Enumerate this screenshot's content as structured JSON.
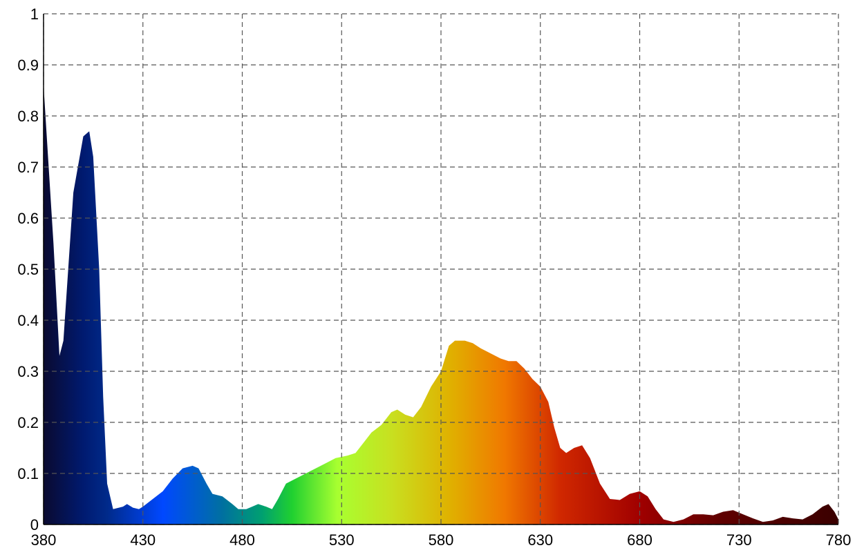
{
  "chart_data": {
    "type": "area",
    "x": [
      380,
      385,
      388,
      390,
      395,
      400,
      403,
      405,
      408,
      410,
      412,
      415,
      420,
      422,
      425,
      428,
      430,
      435,
      440,
      445,
      450,
      455,
      458,
      462,
      465,
      470,
      475,
      478,
      482,
      485,
      488,
      492,
      495,
      498,
      502,
      507,
      512,
      517,
      522,
      527,
      533,
      537,
      541,
      545,
      550,
      555,
      558,
      562,
      566,
      570,
      575,
      580,
      584,
      587,
      592,
      596,
      600,
      605,
      610,
      614,
      618,
      622,
      626,
      630,
      634,
      637,
      640,
      643,
      647,
      651,
      655,
      660,
      665,
      670,
      675,
      680,
      684,
      688,
      692,
      697,
      702,
      707,
      712,
      717,
      722,
      727,
      732,
      737,
      742,
      747,
      752,
      757,
      762,
      767,
      772,
      775,
      778,
      780
    ],
    "values": [
      0.86,
      0.55,
      0.33,
      0.36,
      0.65,
      0.76,
      0.77,
      0.72,
      0.5,
      0.25,
      0.08,
      0.03,
      0.035,
      0.04,
      0.033,
      0.03,
      0.035,
      0.05,
      0.065,
      0.09,
      0.11,
      0.115,
      0.11,
      0.08,
      0.06,
      0.055,
      0.04,
      0.03,
      0.03,
      0.035,
      0.04,
      0.035,
      0.03,
      0.05,
      0.08,
      0.09,
      0.1,
      0.11,
      0.12,
      0.13,
      0.135,
      0.14,
      0.16,
      0.18,
      0.195,
      0.22,
      0.225,
      0.215,
      0.21,
      0.23,
      0.27,
      0.3,
      0.35,
      0.36,
      0.36,
      0.355,
      0.345,
      0.335,
      0.325,
      0.32,
      0.32,
      0.305,
      0.285,
      0.27,
      0.24,
      0.19,
      0.15,
      0.14,
      0.15,
      0.155,
      0.13,
      0.08,
      0.05,
      0.048,
      0.06,
      0.065,
      0.055,
      0.03,
      0.01,
      0.005,
      0.01,
      0.02,
      0.02,
      0.018,
      0.025,
      0.028,
      0.02,
      0.012,
      0.005,
      0.008,
      0.015,
      0.012,
      0.01,
      0.02,
      0.035,
      0.04,
      0.025,
      0.01
    ],
    "gradient": [
      {
        "x": 380,
        "color": "#0a0a30"
      },
      {
        "x": 400,
        "color": "#001a70"
      },
      {
        "x": 412,
        "color": "#002a8a"
      },
      {
        "x": 440,
        "color": "#0048ff"
      },
      {
        "x": 470,
        "color": "#0070a0"
      },
      {
        "x": 490,
        "color": "#00a070"
      },
      {
        "x": 505,
        "color": "#20d030"
      },
      {
        "x": 528,
        "color": "#a8ff30"
      },
      {
        "x": 555,
        "color": "#c8e020"
      },
      {
        "x": 585,
        "color": "#e0b000"
      },
      {
        "x": 612,
        "color": "#f07800"
      },
      {
        "x": 640,
        "color": "#d02800"
      },
      {
        "x": 680,
        "color": "#a00000"
      },
      {
        "x": 720,
        "color": "#600000"
      },
      {
        "x": 780,
        "color": "#3a0000"
      }
    ],
    "xlim": [
      380,
      780
    ],
    "ylim": [
      0,
      1
    ],
    "xticks": [
      380,
      430,
      480,
      530,
      580,
      630,
      680,
      730,
      780
    ],
    "yticks": [
      0,
      0.1,
      0.2,
      0.3,
      0.4,
      0.5,
      0.6,
      0.7,
      0.8,
      0.9,
      1
    ],
    "grid": true
  }
}
